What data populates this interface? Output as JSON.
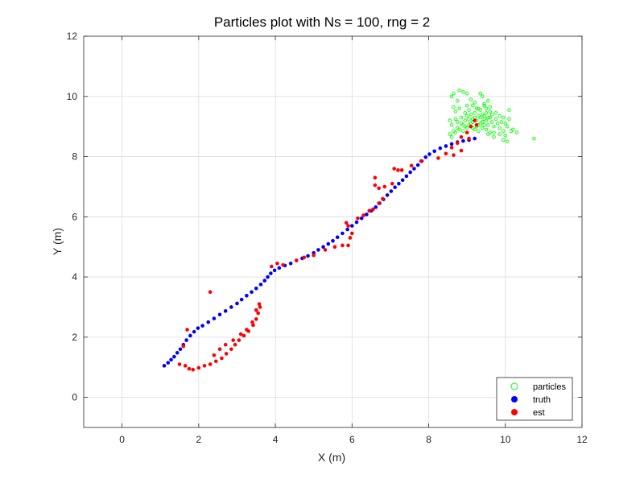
{
  "chart_data": {
    "type": "scatter",
    "title": "Particles plot with Ns = 100, rng = 2",
    "xlabel": "X (m)",
    "ylabel": "Y (m)",
    "xlim": [
      -1,
      12
    ],
    "ylim": [
      -1,
      12
    ],
    "xticks": [
      0,
      2,
      4,
      6,
      8,
      10,
      12
    ],
    "yticks": [
      0,
      2,
      4,
      6,
      8,
      10,
      12
    ],
    "grid": true,
    "legend_position": "bottom-right",
    "series": [
      {
        "name": "particles",
        "marker": "open-circle",
        "color": "#00ff00",
        "points": [
          [
            8.6,
            10.0
          ],
          [
            8.65,
            10.1
          ],
          [
            8.75,
            9.85
          ],
          [
            8.8,
            10.2
          ],
          [
            8.9,
            10.15
          ],
          [
            9.0,
            10.1
          ],
          [
            9.1,
            9.9
          ],
          [
            9.2,
            9.8
          ],
          [
            9.35,
            10.1
          ],
          [
            9.4,
            10.0
          ],
          [
            9.45,
            9.75
          ],
          [
            9.5,
            9.6
          ],
          [
            9.55,
            9.85
          ],
          [
            9.6,
            9.5
          ],
          [
            9.3,
            9.6
          ],
          [
            9.2,
            9.45
          ],
          [
            9.05,
            9.55
          ],
          [
            8.95,
            9.45
          ],
          [
            8.85,
            9.3
          ],
          [
            8.7,
            9.5
          ],
          [
            8.55,
            9.2
          ],
          [
            8.6,
            9.05
          ],
          [
            8.75,
            9.15
          ],
          [
            8.9,
            9.05
          ],
          [
            9.0,
            8.95
          ],
          [
            9.1,
            9.1
          ],
          [
            9.15,
            9.25
          ],
          [
            9.25,
            9.2
          ],
          [
            9.3,
            9.05
          ],
          [
            9.35,
            9.3
          ],
          [
            9.4,
            9.15
          ],
          [
            9.45,
            9.35
          ],
          [
            9.5,
            9.2
          ],
          [
            9.55,
            9.05
          ],
          [
            9.6,
            9.3
          ],
          [
            9.65,
            9.15
          ],
          [
            9.7,
            9.0
          ],
          [
            9.75,
            9.25
          ],
          [
            9.8,
            9.1
          ],
          [
            9.85,
            8.95
          ],
          [
            9.9,
            9.15
          ],
          [
            9.95,
            8.85
          ],
          [
            10.0,
            8.7
          ],
          [
            10.05,
            9.0
          ],
          [
            10.1,
            9.55
          ],
          [
            10.15,
            8.85
          ],
          [
            10.2,
            8.9
          ],
          [
            10.3,
            8.8
          ],
          [
            9.95,
            8.55
          ],
          [
            10.05,
            8.5
          ],
          [
            9.7,
            8.65
          ],
          [
            9.6,
            8.8
          ],
          [
            9.5,
            8.9
          ],
          [
            9.4,
            8.95
          ],
          [
            9.3,
            8.85
          ],
          [
            9.2,
            8.9
          ],
          [
            9.25,
            9.0
          ],
          [
            9.35,
            9.1
          ],
          [
            9.45,
            9.05
          ],
          [
            9.15,
            9.15
          ],
          [
            9.05,
            9.25
          ],
          [
            8.95,
            9.2
          ],
          [
            8.85,
            9.1
          ],
          [
            8.75,
            8.95
          ],
          [
            8.65,
            8.85
          ],
          [
            8.55,
            8.75
          ],
          [
            8.6,
            8.65
          ],
          [
            8.7,
            8.8
          ],
          [
            8.8,
            8.9
          ],
          [
            8.9,
            8.85
          ],
          [
            9.0,
            9.35
          ],
          [
            9.1,
            9.4
          ],
          [
            9.2,
            9.3
          ],
          [
            9.3,
            9.35
          ],
          [
            9.4,
            9.4
          ],
          [
            9.5,
            9.45
          ],
          [
            9.55,
            9.3
          ],
          [
            9.65,
            9.4
          ],
          [
            9.75,
            9.45
          ],
          [
            9.85,
            9.35
          ],
          [
            9.95,
            9.3
          ],
          [
            9.6,
            9.65
          ],
          [
            9.45,
            9.7
          ],
          [
            9.35,
            9.55
          ],
          [
            9.25,
            9.6
          ],
          [
            9.15,
            9.7
          ],
          [
            8.65,
            9.65
          ],
          [
            8.7,
            9.25
          ],
          [
            8.8,
            9.6
          ],
          [
            9.0,
            9.7
          ],
          [
            10.0,
            9.1
          ],
          [
            10.1,
            9.25
          ],
          [
            9.85,
            8.75
          ],
          [
            9.7,
            8.8
          ],
          [
            9.55,
            8.75
          ],
          [
            9.15,
            8.95
          ],
          [
            9.05,
            9.05
          ],
          [
            8.95,
            9.0
          ],
          [
            10.75,
            8.6
          ],
          [
            9.45,
            9.25
          ]
        ]
      },
      {
        "name": "truth",
        "marker": "filled-circle",
        "color": "#0000ff",
        "points": [
          [
            1.1,
            1.05
          ],
          [
            1.2,
            1.15
          ],
          [
            1.28,
            1.25
          ],
          [
            1.36,
            1.35
          ],
          [
            1.44,
            1.48
          ],
          [
            1.52,
            1.6
          ],
          [
            1.6,
            1.75
          ],
          [
            1.68,
            1.9
          ],
          [
            1.78,
            2.05
          ],
          [
            1.88,
            2.18
          ],
          [
            1.98,
            2.3
          ],
          [
            2.1,
            2.38
          ],
          [
            2.25,
            2.5
          ],
          [
            2.4,
            2.62
          ],
          [
            2.55,
            2.75
          ],
          [
            2.7,
            2.87
          ],
          [
            2.85,
            3.0
          ],
          [
            3.0,
            3.12
          ],
          [
            3.12,
            3.25
          ],
          [
            3.25,
            3.38
          ],
          [
            3.38,
            3.5
          ],
          [
            3.5,
            3.62
          ],
          [
            3.62,
            3.75
          ],
          [
            3.72,
            3.88
          ],
          [
            3.8,
            4.0
          ],
          [
            3.88,
            4.12
          ],
          [
            3.98,
            4.22
          ],
          [
            4.1,
            4.3
          ],
          [
            4.25,
            4.38
          ],
          [
            4.4,
            4.45
          ],
          [
            4.55,
            4.55
          ],
          [
            4.7,
            4.62
          ],
          [
            4.85,
            4.7
          ],
          [
            5.0,
            4.8
          ],
          [
            5.12,
            4.9
          ],
          [
            5.25,
            5.0
          ],
          [
            5.38,
            5.1
          ],
          [
            5.5,
            5.2
          ],
          [
            5.62,
            5.32
          ],
          [
            5.75,
            5.45
          ],
          [
            5.88,
            5.58
          ],
          [
            6.0,
            5.7
          ],
          [
            6.12,
            5.82
          ],
          [
            6.25,
            5.95
          ],
          [
            6.38,
            6.08
          ],
          [
            6.5,
            6.2
          ],
          [
            6.62,
            6.32
          ],
          [
            6.72,
            6.45
          ],
          [
            6.82,
            6.58
          ],
          [
            6.92,
            6.72
          ],
          [
            7.02,
            6.85
          ],
          [
            7.12,
            6.98
          ],
          [
            7.22,
            7.1
          ],
          [
            7.32,
            7.22
          ],
          [
            7.42,
            7.35
          ],
          [
            7.52,
            7.48
          ],
          [
            7.62,
            7.6
          ],
          [
            7.72,
            7.72
          ],
          [
            7.82,
            7.85
          ],
          [
            7.92,
            7.98
          ],
          [
            8.02,
            8.08
          ],
          [
            8.15,
            8.18
          ],
          [
            8.3,
            8.28
          ],
          [
            8.45,
            8.35
          ],
          [
            8.6,
            8.42
          ],
          [
            8.75,
            8.48
          ],
          [
            8.9,
            8.52
          ],
          [
            9.05,
            8.55
          ],
          [
            9.2,
            8.6
          ]
        ]
      },
      {
        "name": "est",
        "marker": "filled-circle",
        "color": "#ff0000",
        "points": [
          [
            1.5,
            1.1
          ],
          [
            1.65,
            1.05
          ],
          [
            1.75,
            0.95
          ],
          [
            1.85,
            0.92
          ],
          [
            2.0,
            0.98
          ],
          [
            2.15,
            1.05
          ],
          [
            2.3,
            1.1
          ],
          [
            2.45,
            1.2
          ],
          [
            2.6,
            1.3
          ],
          [
            2.72,
            1.45
          ],
          [
            2.85,
            1.6
          ],
          [
            2.95,
            1.75
          ],
          [
            3.05,
            1.9
          ],
          [
            3.18,
            2.05
          ],
          [
            3.3,
            2.2
          ],
          [
            3.42,
            2.4
          ],
          [
            3.5,
            2.6
          ],
          [
            3.55,
            2.8
          ],
          [
            3.6,
            3.0
          ],
          [
            3.58,
            3.1
          ],
          [
            3.5,
            2.9
          ],
          [
            3.4,
            2.5
          ],
          [
            3.25,
            2.25
          ],
          [
            3.1,
            2.1
          ],
          [
            2.9,
            1.9
          ],
          [
            2.7,
            1.75
          ],
          [
            2.55,
            1.6
          ],
          [
            2.4,
            1.4
          ],
          [
            1.7,
            2.25
          ],
          [
            1.6,
            1.7
          ],
          [
            2.3,
            3.5
          ],
          [
            3.9,
            4.35
          ],
          [
            4.05,
            4.45
          ],
          [
            4.2,
            4.4
          ],
          [
            4.55,
            4.55
          ],
          [
            4.75,
            4.65
          ],
          [
            5.0,
            4.72
          ],
          [
            5.3,
            4.9
          ],
          [
            5.55,
            5.0
          ],
          [
            5.75,
            5.05
          ],
          [
            5.9,
            5.05
          ],
          [
            5.95,
            5.3
          ],
          [
            6.0,
            5.45
          ],
          [
            5.85,
            5.8
          ],
          [
            5.9,
            5.7
          ],
          [
            6.15,
            5.95
          ],
          [
            6.3,
            6.05
          ],
          [
            6.45,
            6.2
          ],
          [
            6.55,
            6.25
          ],
          [
            6.7,
            6.45
          ],
          [
            6.8,
            6.6
          ],
          [
            6.6,
            7.05
          ],
          [
            6.7,
            6.95
          ],
          [
            6.6,
            7.3
          ],
          [
            6.85,
            7.0
          ],
          [
            7.05,
            7.1
          ],
          [
            7.1,
            7.6
          ],
          [
            7.2,
            7.55
          ],
          [
            7.3,
            7.55
          ],
          [
            7.55,
            7.7
          ],
          [
            7.8,
            7.85
          ],
          [
            8.25,
            7.95
          ],
          [
            8.45,
            8.1
          ],
          [
            8.6,
            8.3
          ],
          [
            8.75,
            8.45
          ],
          [
            8.85,
            8.65
          ],
          [
            9.0,
            8.8
          ],
          [
            9.1,
            9.0
          ],
          [
            9.25,
            9.05
          ],
          [
            9.2,
            9.2
          ],
          [
            9.05,
            8.6
          ],
          [
            8.65,
            8.05
          ],
          [
            8.85,
            8.2
          ]
        ]
      }
    ]
  }
}
